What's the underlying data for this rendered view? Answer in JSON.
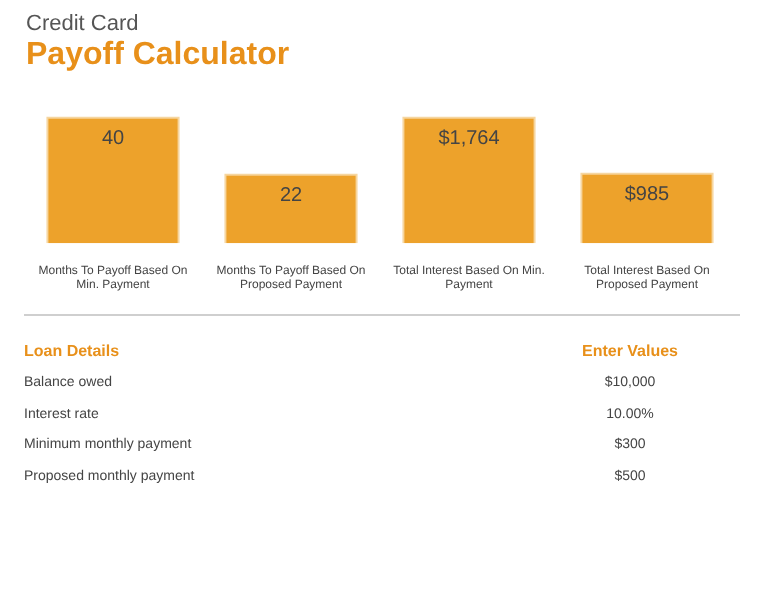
{
  "chart_data": {
    "type": "bar",
    "title": "Credit Card",
    "subtitle": "Payoff Calculator",
    "categories": [
      "Months To Payoff Based On Min. Payment",
      "Months To Payoff Based On Proposed Payment",
      "Total Interest Based On Min. Payment",
      "Total Interest Based On Proposed Payment"
    ],
    "series": [
      {
        "color": "#eda22b",
        "values": [
          40,
          22,
          null,
          null
        ],
        "value_labels": [
          "40",
          "22",
          null,
          null
        ]
      },
      {
        "color": "#eda22b",
        "axis": "y2",
        "values": [
          null,
          null,
          1764,
          985
        ],
        "value_labels": [
          null,
          null,
          "$1,764",
          "$985"
        ]
      }
    ],
    "tick_labels": "x",
    "annotations": [
      "Loan Details",
      "Enter Values",
      "Balance owed",
      "$10,000",
      "Interest rate",
      "10.00%",
      "Minimum monthly payment",
      "$300",
      "Proposed monthly payment",
      "$500"
    ]
  }
}
